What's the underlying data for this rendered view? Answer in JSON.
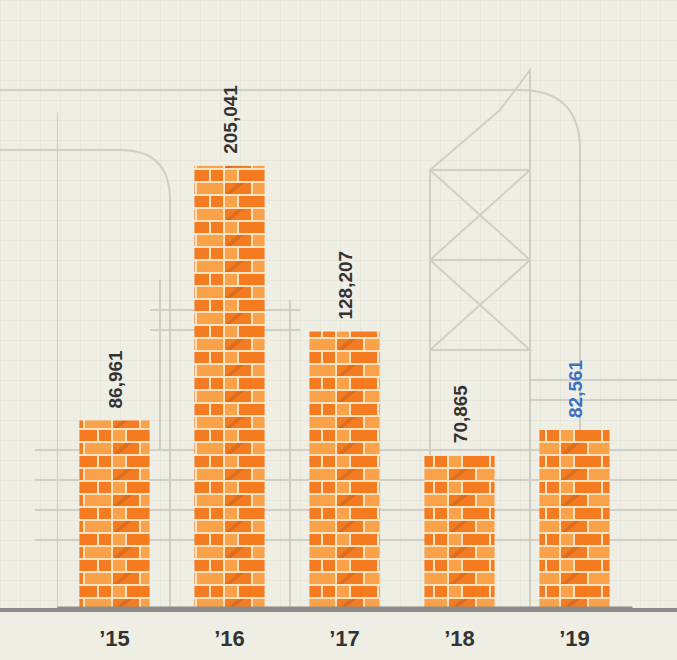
{
  "chart_data": {
    "type": "bar",
    "categories": [
      "’15",
      "’16",
      "’17",
      "’18",
      "’19"
    ],
    "values": [
      86961,
      205041,
      128207,
      70865,
      82561
    ],
    "value_labels": [
      "86,961",
      "205,041",
      "128,207",
      "70,865",
      "82,561"
    ],
    "color": "#f47b20",
    "ylim": [
      0,
      230000
    ],
    "yticks": [],
    "grid": false,
    "data_labels": true,
    "tick_labels": "x"
  }
}
